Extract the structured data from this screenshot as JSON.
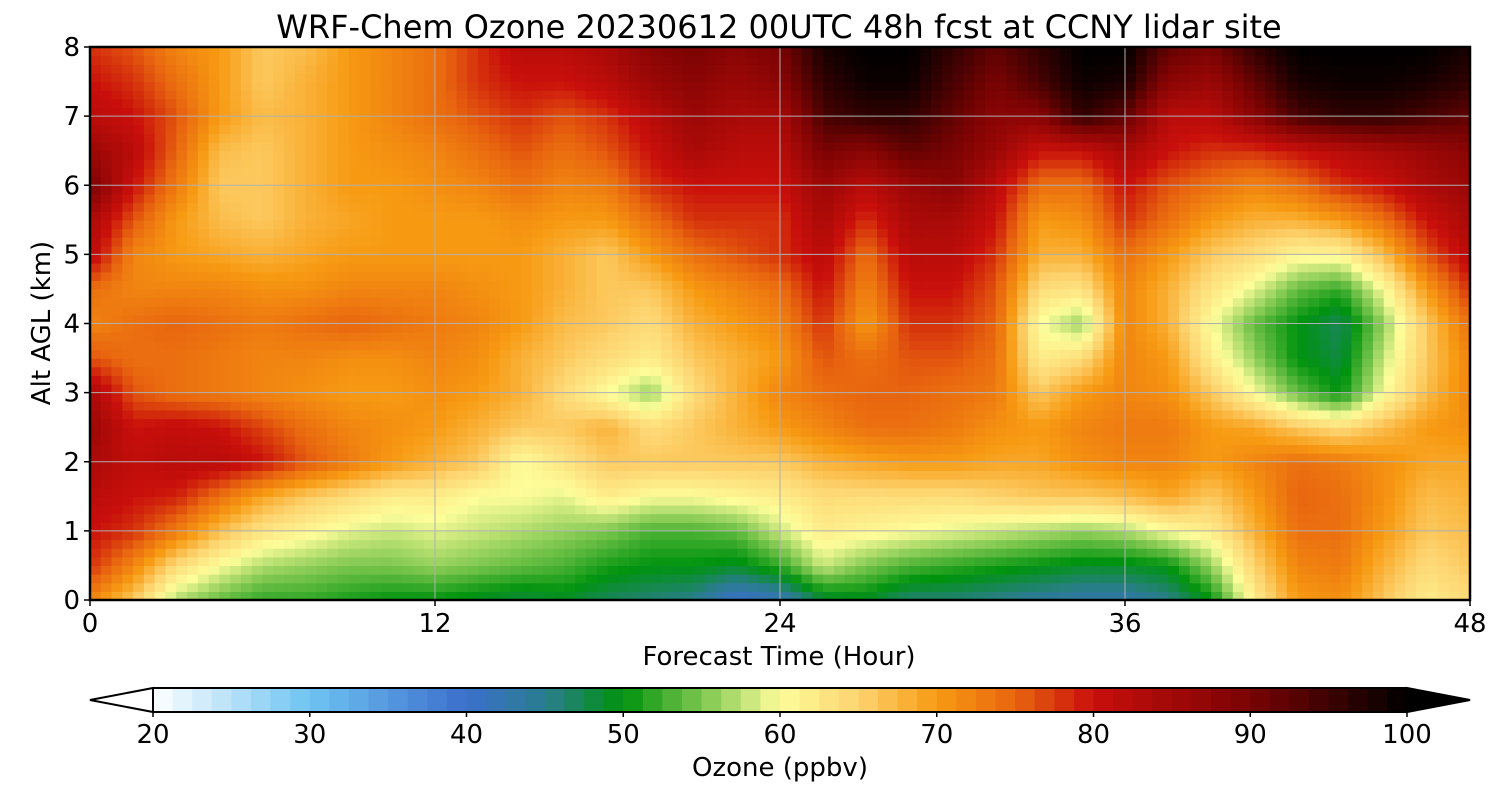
{
  "chart_data": {
    "type": "heatmap",
    "title": "WRF-Chem Ozone  20230612 00UTC 48h fcst at CCNY lidar site",
    "xlabel": "Forecast Time (Hour)",
    "ylabel": "Alt AGL (km)",
    "xlim": [
      0,
      48
    ],
    "ylim": [
      0,
      8
    ],
    "xticks": [
      0,
      12,
      24,
      36,
      48
    ],
    "yticks": [
      0,
      1,
      2,
      3,
      4,
      5,
      6,
      7,
      8
    ],
    "grid": true,
    "x": [
      0,
      1.5,
      3,
      4.5,
      6,
      7.5,
      9,
      10.5,
      12,
      13.5,
      15,
      16.5,
      18,
      19.5,
      21,
      22.5,
      24,
      25.5,
      27,
      28.5,
      30,
      31.5,
      33,
      34.5,
      36,
      37.5,
      39,
      40.5,
      42,
      43.5,
      45,
      46.5,
      48
    ],
    "y": [
      0,
      0.5,
      1,
      1.5,
      2,
      2.5,
      3,
      3.5,
      4,
      4.5,
      5,
      5.5,
      6,
      6.5,
      7,
      7.5,
      8
    ],
    "z_units": "ppbv",
    "values": [
      [
        72,
        66,
        57,
        54,
        52,
        52,
        51,
        50,
        50,
        49,
        48,
        49,
        47,
        46,
        45,
        40,
        42,
        48,
        49,
        46,
        46,
        45,
        44,
        43,
        43,
        45,
        50,
        62,
        70,
        71,
        66,
        62,
        64
      ],
      [
        78,
        72,
        64,
        60,
        57,
        56,
        55,
        55,
        56,
        55,
        54,
        53,
        51,
        50,
        50,
        49,
        52,
        58,
        55,
        53,
        52,
        51,
        50,
        49,
        49,
        50,
        56,
        65,
        72,
        73,
        68,
        64,
        66
      ],
      [
        80,
        78,
        73,
        67,
        63,
        61,
        59,
        58,
        59,
        58,
        57,
        56,
        55,
        53,
        53,
        54,
        58,
        62,
        61,
        60,
        59,
        58,
        57,
        56,
        57,
        60,
        62,
        68,
        74,
        74,
        70,
        66,
        67
      ],
      [
        82,
        80,
        79,
        74,
        69,
        66,
        64,
        62,
        62,
        60,
        60,
        59,
        62,
        60,
        60,
        61,
        62,
        64,
        64,
        64,
        64,
        65,
        66,
        66,
        67,
        69,
        66,
        70,
        75,
        74,
        71,
        67,
        68
      ],
      [
        84,
        81,
        82,
        82,
        80,
        76,
        73,
        70,
        68,
        66,
        60,
        63,
        66,
        66,
        66,
        66,
        66,
        68,
        69,
        70,
        70,
        69,
        69,
        71,
        72,
        72,
        70,
        72,
        74,
        73,
        71,
        69,
        69
      ],
      [
        86,
        80,
        81,
        80,
        77,
        74,
        72,
        71,
        70,
        68,
        66,
        66,
        68,
        64,
        66,
        68,
        70,
        72,
        74,
        74,
        73,
        71,
        70,
        72,
        73,
        73,
        70,
        69,
        66,
        64,
        67,
        70,
        71
      ],
      [
        84,
        76,
        74,
        73,
        72,
        71,
        70,
        70,
        71,
        70,
        68,
        64,
        60,
        56,
        64,
        68,
        72,
        74,
        75,
        75,
        74,
        73,
        66,
        70,
        72,
        71,
        66,
        60,
        54,
        50,
        60,
        67,
        72
      ],
      [
        76,
        74,
        74,
        73,
        72,
        72,
        71,
        71,
        72,
        71,
        68,
        66,
        64,
        62,
        66,
        68,
        70,
        76,
        74,
        76,
        76,
        74,
        62,
        64,
        72,
        70,
        62,
        56,
        50,
        48,
        58,
        66,
        72
      ],
      [
        72,
        74,
        75,
        74,
        73,
        74,
        75,
        74,
        73,
        72,
        70,
        67,
        66,
        64,
        68,
        70,
        72,
        78,
        70,
        78,
        78,
        75,
        60,
        56,
        72,
        68,
        60,
        54,
        50,
        47,
        56,
        66,
        74
      ],
      [
        74,
        72,
        72,
        72,
        71,
        71,
        72,
        72,
        72,
        71,
        70,
        68,
        66,
        66,
        70,
        72,
        74,
        80,
        72,
        80,
        80,
        76,
        64,
        63,
        72,
        68,
        63,
        59,
        54,
        52,
        60,
        70,
        78
      ],
      [
        82,
        72,
        70,
        69,
        68,
        69,
        70,
        70,
        70,
        70,
        70,
        68,
        66,
        70,
        74,
        76,
        78,
        82,
        74,
        82,
        82,
        78,
        68,
        68,
        74,
        70,
        66,
        64,
        61,
        61,
        67,
        76,
        82
      ],
      [
        84,
        76,
        70,
        67,
        66,
        68,
        69,
        70,
        70,
        70,
        71,
        70,
        70,
        74,
        78,
        78,
        78,
        84,
        78,
        84,
        84,
        80,
        70,
        71,
        78,
        74,
        70,
        68,
        68,
        70,
        74,
        80,
        84
      ],
      [
        90,
        80,
        73,
        66,
        66,
        68,
        70,
        70,
        71,
        72,
        74,
        72,
        73,
        78,
        80,
        80,
        80,
        86,
        82,
        86,
        88,
        82,
        74,
        74,
        80,
        76,
        74,
        72,
        74,
        78,
        80,
        84,
        86
      ],
      [
        86,
        82,
        75,
        67,
        66,
        68,
        70,
        71,
        72,
        74,
        76,
        74,
        76,
        80,
        84,
        82,
        82,
        90,
        88,
        92,
        90,
        86,
        80,
        80,
        84,
        80,
        78,
        78,
        80,
        82,
        84,
        86,
        88
      ],
      [
        82,
        80,
        76,
        70,
        67,
        68,
        70,
        72,
        74,
        76,
        78,
        76,
        78,
        82,
        86,
        84,
        84,
        94,
        96,
        96,
        92,
        88,
        88,
        96,
        92,
        82,
        82,
        88,
        94,
        96,
        96,
        94,
        92
      ],
      [
        80,
        78,
        74,
        70,
        66,
        68,
        70,
        72,
        74,
        78,
        80,
        80,
        82,
        86,
        88,
        86,
        88,
        96,
        99,
        99,
        94,
        90,
        94,
        99,
        98,
        88,
        86,
        92,
        98,
        99,
        99,
        98,
        96
      ],
      [
        78,
        76,
        72,
        70,
        66,
        67,
        70,
        72,
        74,
        78,
        82,
        82,
        84,
        88,
        90,
        88,
        90,
        98,
        100,
        100,
        96,
        92,
        96,
        100,
        100,
        92,
        90,
        96,
        100,
        100,
        100,
        100,
        98
      ]
    ],
    "colorbar": {
      "label": "Ozone  (ppbv)",
      "min": 20,
      "max": 100,
      "ticks": [
        20,
        30,
        40,
        50,
        60,
        70,
        80,
        90,
        100
      ],
      "extend": "both",
      "stops": [
        {
          "v": 20,
          "color": "#ffffff"
        },
        {
          "v": 30,
          "color": "#6ec3f2"
        },
        {
          "v": 40,
          "color": "#3b6fcc"
        },
        {
          "v": 45,
          "color": "#2a7d8e"
        },
        {
          "v": 50,
          "color": "#00930e"
        },
        {
          "v": 55,
          "color": "#7cc64e"
        },
        {
          "v": 60,
          "color": "#fdfd9a"
        },
        {
          "v": 65,
          "color": "#fdd470"
        },
        {
          "v": 70,
          "color": "#f79a12"
        },
        {
          "v": 75,
          "color": "#e8650f"
        },
        {
          "v": 80,
          "color": "#c90f0b"
        },
        {
          "v": 90,
          "color": "#7a0303"
        },
        {
          "v": 100,
          "color": "#000000"
        }
      ],
      "under_color": "#ffffff",
      "over_color": "#000000"
    }
  }
}
